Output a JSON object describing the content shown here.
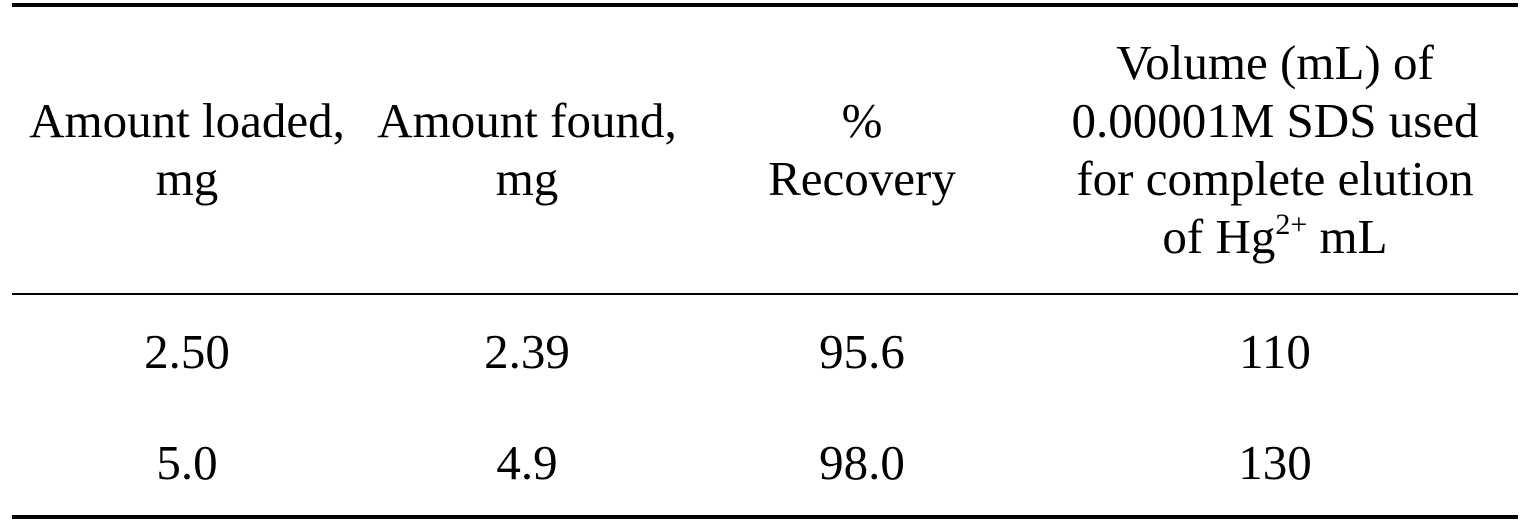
{
  "table": {
    "headers": [
      {
        "lines": [
          "Amount loaded,",
          "mg"
        ]
      },
      {
        "lines": [
          "Amount found,",
          "mg"
        ]
      },
      {
        "lines": [
          "%",
          "Recovery"
        ]
      },
      {
        "lines": [
          "Volume (mL) of",
          "0.00001M SDS used",
          "for complete elution"
        ],
        "last_line_prefix": "of Hg",
        "last_line_superscript": "2+",
        "last_line_suffix": " mL"
      }
    ],
    "rows": [
      [
        "2.50",
        "2.39",
        "95.6",
        "110"
      ],
      [
        "5.0",
        "4.9",
        "98.0",
        "130"
      ]
    ]
  }
}
